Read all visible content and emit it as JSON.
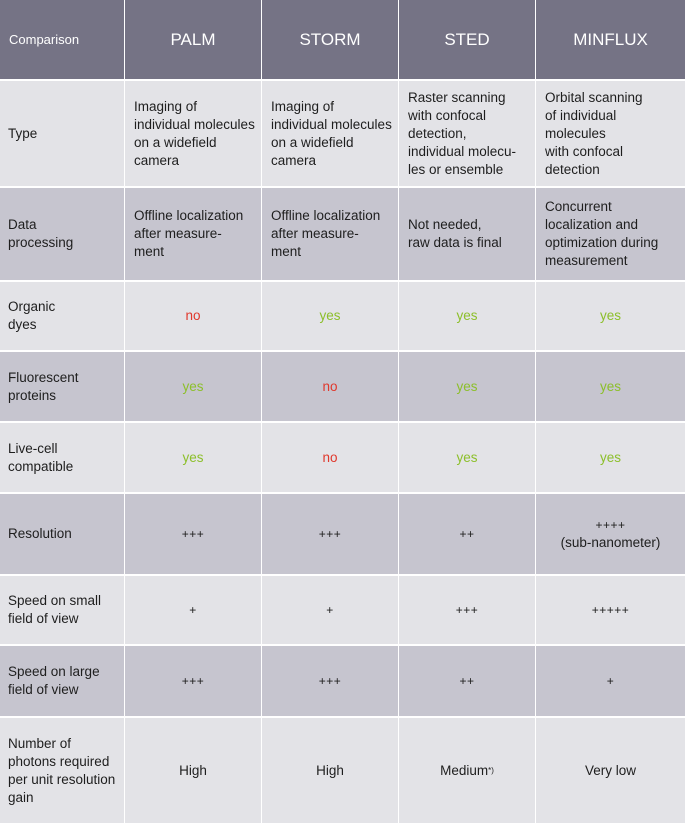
{
  "header": {
    "label": "Comparison",
    "columns": [
      "PALM",
      "STORM",
      "STED",
      "MINFLUX"
    ]
  },
  "rows": [
    {
      "label": "Type",
      "cells": [
        "Imaging of\nindividual molecules\non a widefield\ncamera",
        "Imaging of\nindividual molecules\non a widefield\ncamera",
        "Raster scanning\nwith confocal\ndetection,\nindividual molecu-\nles or ensemble",
        "Orbital scanning\nof individual\nmolecules\nwith confocal\ndetection"
      ]
    },
    {
      "label": "Data\nprocessing",
      "cells": [
        "Offline localization\nafter measure-\nment",
        "Offline localization\nafter measure-\nment",
        "Not needed,\nraw data is final",
        "Concurrent\nlocalization and\noptimization during\nmeasurement"
      ]
    },
    {
      "label": "Organic\ndyes",
      "cells": [
        "no",
        "yes",
        "yes",
        "yes"
      ]
    },
    {
      "label": "Fluorescent\nproteins",
      "cells": [
        "yes",
        "no",
        "yes",
        "yes"
      ]
    },
    {
      "label": "Live-cell\ncompatible",
      "cells": [
        "yes",
        "no",
        "yes",
        "yes"
      ]
    },
    {
      "label": "Resolution",
      "cells": [
        "+++",
        "+++",
        "++",
        "++++"
      ],
      "minflux_note": "(sub-nanometer)"
    },
    {
      "label": "Speed on small\nfield of view",
      "cells": [
        "+",
        "+",
        "+++",
        "+++++"
      ]
    },
    {
      "label": "Speed on large\nfield of view",
      "cells": [
        "+++",
        "+++",
        "++",
        "+"
      ]
    },
    {
      "label": "Number of\nphotons required\nper unit resolution\ngain",
      "cells": [
        "High",
        "High",
        "Medium",
        "Very low"
      ],
      "sted_footnote": "*)"
    }
  ],
  "colors": {
    "header_bg": "#757385",
    "row_light": "#e3e3e7",
    "row_dark": "#c6c5cf",
    "yes": "#8cbf2a",
    "no": "#e0382c"
  }
}
